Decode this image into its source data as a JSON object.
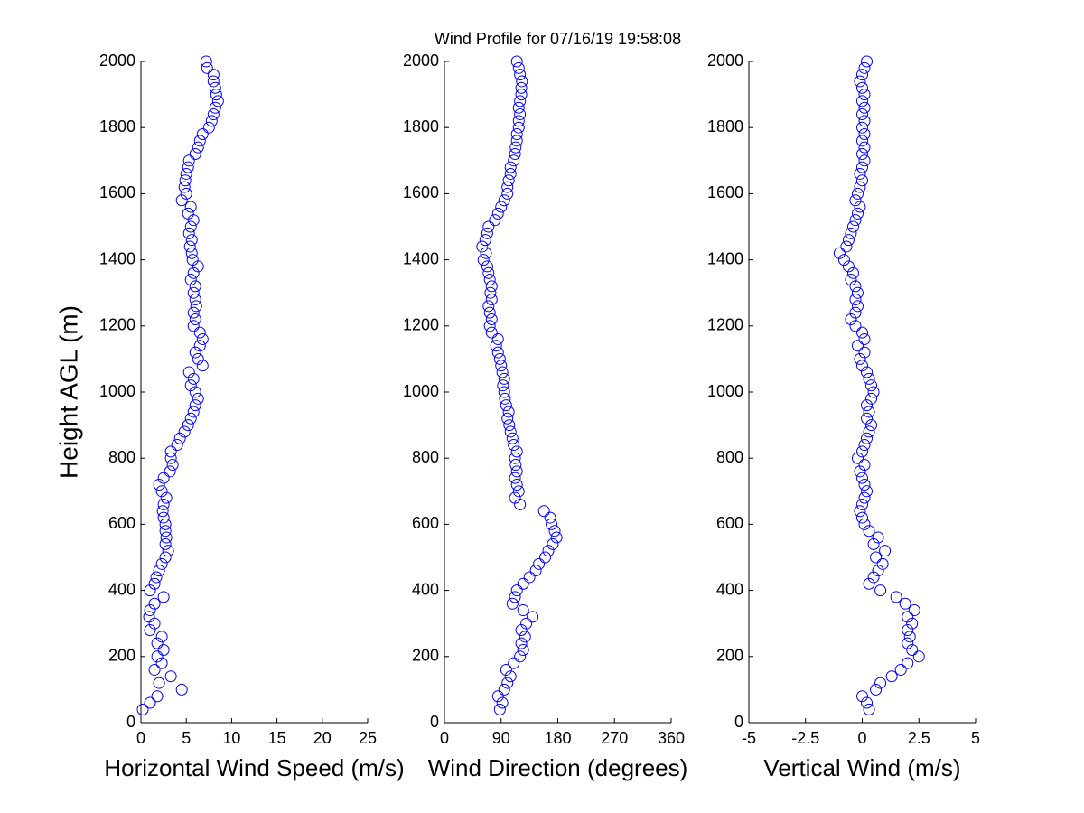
{
  "chart_data": [
    {
      "type": "scatter",
      "xlabel": "Horizontal Wind Speed (m/s)",
      "ylabel": "Height AGL (m)",
      "color": "#0000ff",
      "xlim": [
        0,
        25
      ],
      "xticks": [
        0,
        5,
        10,
        15,
        20,
        25
      ],
      "ylim": [
        0,
        2000
      ],
      "yticks": [
        0,
        200,
        400,
        600,
        800,
        1000,
        1200,
        1400,
        1600,
        1800,
        2000
      ],
      "x": [
        0.2,
        1.0,
        1.8,
        4.5,
        2.0,
        3.3,
        1.5,
        2.3,
        1.8,
        2.5,
        1.8,
        2.3,
        1.0,
        1.5,
        0.9,
        1.0,
        1.5,
        2.5,
        1.0,
        1.5,
        1.7,
        2.0,
        2.3,
        2.7,
        3.0,
        2.7,
        2.8,
        2.7,
        2.7,
        2.5,
        2.4,
        2.5,
        2.8,
        2.3,
        2.0,
        2.5,
        3.2,
        3.5,
        3.3,
        3.3,
        4.0,
        4.3,
        4.8,
        5.2,
        5.5,
        5.8,
        6.0,
        6.3,
        6.0,
        5.5,
        5.8,
        5.3,
        6.8,
        6.3,
        6.0,
        6.5,
        6.8,
        6.5,
        5.8,
        6.0,
        5.8,
        6.1,
        6.0,
        5.8,
        6.0,
        5.5,
        5.8,
        6.3,
        5.7,
        5.6,
        5.4,
        5.6,
        5.3,
        5.5,
        5.8,
        5.2,
        5.5,
        4.5,
        5.0,
        4.8,
        4.9,
        5.0,
        5.2,
        5.3,
        6.0,
        6.3,
        6.5,
        6.8,
        7.5,
        7.8,
        8.0,
        8.2,
        8.5,
        8.3,
        8.2,
        8.0,
        8.0,
        7.3,
        7.2
      ],
      "y": [
        40,
        60,
        80,
        100,
        120,
        140,
        160,
        180,
        200,
        220,
        240,
        260,
        280,
        300,
        320,
        340,
        360,
        380,
        400,
        420,
        440,
        460,
        480,
        500,
        520,
        540,
        560,
        580,
        600,
        620,
        640,
        660,
        680,
        700,
        720,
        740,
        760,
        780,
        800,
        820,
        840,
        860,
        880,
        900,
        920,
        940,
        960,
        980,
        1000,
        1020,
        1040,
        1060,
        1080,
        1100,
        1120,
        1140,
        1160,
        1180,
        1200,
        1220,
        1240,
        1260,
        1280,
        1300,
        1320,
        1340,
        1360,
        1380,
        1400,
        1420,
        1440,
        1460,
        1480,
        1500,
        1520,
        1540,
        1560,
        1580,
        1600,
        1620,
        1640,
        1660,
        1680,
        1700,
        1720,
        1740,
        1760,
        1780,
        1800,
        1820,
        1840,
        1860,
        1880,
        1900,
        1920,
        1940,
        1960,
        1980,
        2000
      ]
    },
    {
      "type": "scatter",
      "title": "Wind Profile for  07/16/19 19:58:08",
      "xlabel": "Wind Direction (degrees)",
      "color": "#0000ff",
      "xlim": [
        0,
        360
      ],
      "xticks": [
        0,
        90,
        180,
        270,
        360
      ],
      "ylim": [
        0,
        2000
      ],
      "yticks": [
        0,
        200,
        400,
        600,
        800,
        1000,
        1200,
        1400,
        1600,
        1800,
        2000
      ],
      "x": [
        88,
        92,
        85,
        95,
        100,
        105,
        98,
        110,
        120,
        125,
        122,
        128,
        122,
        130,
        140,
        125,
        108,
        112,
        115,
        125,
        135,
        145,
        150,
        160,
        165,
        172,
        178,
        175,
        170,
        168,
        158,
        120,
        112,
        118,
        115,
        112,
        115,
        113,
        112,
        115,
        110,
        108,
        105,
        103,
        100,
        102,
        98,
        96,
        95,
        93,
        95,
        92,
        90,
        88,
        85,
        82,
        85,
        75,
        72,
        75,
        72,
        70,
        75,
        73,
        75,
        72,
        70,
        68,
        62,
        66,
        60,
        65,
        68,
        70,
        80,
        85,
        90,
        95,
        100,
        100,
        102,
        105,
        105,
        110,
        112,
        113,
        115,
        115,
        118,
        118,
        120,
        118,
        120,
        122,
        122,
        123,
        120,
        118,
        115
      ],
      "y": [
        40,
        60,
        80,
        100,
        120,
        140,
        160,
        180,
        200,
        220,
        240,
        260,
        280,
        300,
        320,
        340,
        360,
        380,
        400,
        420,
        440,
        460,
        480,
        500,
        520,
        540,
        560,
        580,
        600,
        620,
        640,
        660,
        680,
        700,
        720,
        740,
        760,
        780,
        800,
        820,
        840,
        860,
        880,
        900,
        920,
        940,
        960,
        980,
        1000,
        1020,
        1040,
        1060,
        1080,
        1100,
        1120,
        1140,
        1160,
        1180,
        1200,
        1220,
        1240,
        1260,
        1280,
        1300,
        1320,
        1340,
        1360,
        1380,
        1400,
        1420,
        1440,
        1460,
        1480,
        1500,
        1520,
        1540,
        1560,
        1580,
        1600,
        1620,
        1640,
        1660,
        1680,
        1700,
        1720,
        1740,
        1760,
        1780,
        1800,
        1820,
        1840,
        1860,
        1880,
        1900,
        1920,
        1940,
        1960,
        1980,
        2000
      ]
    },
    {
      "type": "scatter",
      "xlabel": "Vertical Wind (m/s)",
      "color": "#0000ff",
      "xlim": [
        -5,
        5
      ],
      "xticks": [
        -5,
        -2.5,
        0,
        2.5,
        5
      ],
      "ylim": [
        0,
        2000
      ],
      "yticks": [
        0,
        200,
        400,
        600,
        800,
        1000,
        1200,
        1400,
        1600,
        1800,
        2000
      ],
      "x": [
        0.3,
        0.2,
        0.0,
        0.6,
        0.8,
        1.3,
        1.7,
        2.0,
        2.5,
        2.2,
        2.0,
        2.1,
        2.0,
        2.2,
        2.0,
        2.3,
        1.9,
        1.5,
        0.8,
        0.3,
        0.5,
        0.7,
        0.9,
        0.6,
        1.0,
        0.5,
        0.7,
        0.3,
        0.1,
        0.0,
        -0.1,
        0.0,
        0.1,
        0.2,
        0.1,
        0.0,
        -0.1,
        0.1,
        -0.2,
        0.0,
        0.1,
        0.2,
        0.3,
        0.4,
        0.2,
        0.3,
        0.2,
        0.4,
        0.5,
        0.4,
        0.3,
        0.2,
        0.0,
        -0.1,
        0.1,
        -0.2,
        0.1,
        0.0,
        -0.3,
        -0.5,
        -0.3,
        -0.2,
        -0.3,
        -0.2,
        -0.3,
        -0.5,
        -0.4,
        -0.6,
        -0.8,
        -1.0,
        -0.7,
        -0.6,
        -0.5,
        -0.4,
        -0.3,
        -0.2,
        -0.1,
        -0.3,
        -0.2,
        -0.1,
        0.0,
        -0.1,
        0.0,
        0.1,
        0.0,
        0.1,
        0.0,
        0.1,
        0.0,
        0.1,
        0.0,
        0.1,
        0.0,
        0.1,
        0.0,
        -0.1,
        0.0,
        0.1,
        0.2
      ],
      "y": [
        40,
        60,
        80,
        100,
        120,
        140,
        160,
        180,
        200,
        220,
        240,
        260,
        280,
        300,
        320,
        340,
        360,
        380,
        400,
        420,
        440,
        460,
        480,
        500,
        520,
        540,
        560,
        580,
        600,
        620,
        640,
        660,
        680,
        700,
        720,
        740,
        760,
        780,
        800,
        820,
        840,
        860,
        880,
        900,
        920,
        940,
        960,
        980,
        1000,
        1020,
        1040,
        1060,
        1080,
        1100,
        1120,
        1140,
        1160,
        1180,
        1200,
        1220,
        1240,
        1260,
        1280,
        1300,
        1320,
        1340,
        1360,
        1380,
        1400,
        1420,
        1440,
        1460,
        1480,
        1500,
        1520,
        1540,
        1560,
        1580,
        1600,
        1620,
        1640,
        1660,
        1680,
        1700,
        1720,
        1740,
        1760,
        1780,
        1800,
        1820,
        1840,
        1860,
        1880,
        1900,
        1920,
        1940,
        1960,
        1980,
        2000
      ]
    }
  ]
}
